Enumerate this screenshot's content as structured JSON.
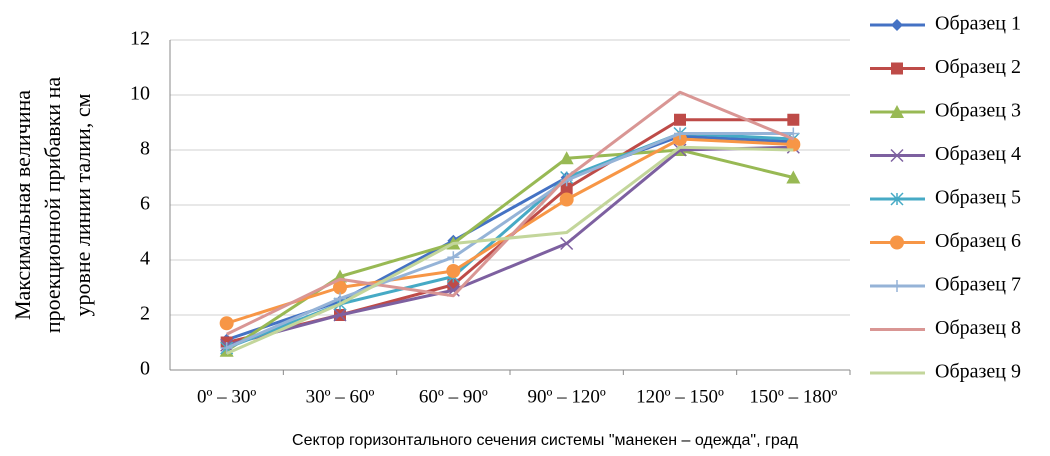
{
  "chart_data": {
    "type": "line",
    "ylabel": [
      "Максимальная величина",
      "проекционной прибавки на",
      "уровне линии талии, см"
    ],
    "xlabel": "Сектор горизонтального сечения системы \"манекен – одежда\", град",
    "categories": [
      "0º – 30º",
      "30º – 60º",
      "60º – 90º",
      "90º – 120º",
      "120º – 150º",
      "150º – 180º"
    ],
    "ylim": [
      0,
      12
    ],
    "yticks": [
      0,
      2,
      4,
      6,
      8,
      10,
      12
    ],
    "grid": true,
    "legend": "right",
    "series": [
      {
        "name": "Образец 1",
        "color": "#4472c4",
        "marker": "diamond",
        "values": [
          1.1,
          2.5,
          4.7,
          7.0,
          8.5,
          8.3
        ]
      },
      {
        "name": "Образец 2",
        "color": "#be4b48",
        "marker": "square",
        "values": [
          1.0,
          2.0,
          3.1,
          6.6,
          9.1,
          9.1
        ]
      },
      {
        "name": "Образец 3",
        "color": "#98b954",
        "marker": "triangle",
        "values": [
          0.7,
          3.4,
          4.6,
          7.7,
          8.0,
          7.0
        ]
      },
      {
        "name": "Образец 4",
        "color": "#7d60a0",
        "marker": "x",
        "values": [
          0.9,
          2.0,
          2.9,
          4.6,
          8.0,
          8.1
        ]
      },
      {
        "name": "Образец 5",
        "color": "#46aac5",
        "marker": "star",
        "values": [
          0.8,
          2.4,
          3.4,
          7.0,
          8.6,
          8.4
        ]
      },
      {
        "name": "Образец 6",
        "color": "#f79646",
        "marker": "circle",
        "values": [
          1.7,
          3.0,
          3.6,
          6.2,
          8.4,
          8.2
        ]
      },
      {
        "name": "Образец 7",
        "color": "#95b3d7",
        "marker": "plus",
        "values": [
          0.8,
          2.6,
          4.1,
          6.9,
          8.6,
          8.6
        ]
      },
      {
        "name": "Образец 8",
        "color": "#d99694",
        "marker": "none",
        "values": [
          1.3,
          3.3,
          2.7,
          7.0,
          10.1,
          8.4
        ]
      },
      {
        "name": "Образец 9",
        "color": "#c3d69b",
        "marker": "none",
        "values": [
          0.6,
          2.4,
          4.6,
          5.0,
          8.1,
          8.0
        ]
      }
    ]
  }
}
